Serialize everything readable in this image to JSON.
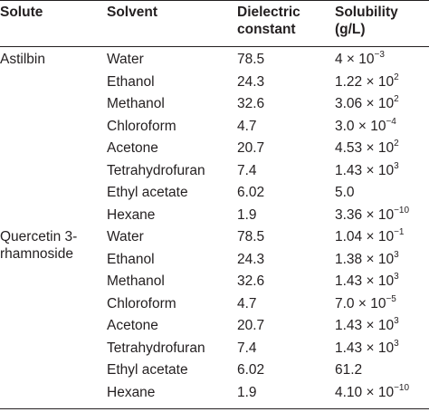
{
  "table": {
    "headers": {
      "solute": "Solute",
      "solvent": "Solvent",
      "dielectric": "Dielectric constant",
      "solubility": "Solubility (g/L)"
    },
    "groups": [
      {
        "solute": "Astilbin",
        "rows": [
          {
            "solvent": "Water",
            "dielectric": "78.5",
            "sol_base": "4 × 10",
            "sol_exp": "−3"
          },
          {
            "solvent": "Ethanol",
            "dielectric": "24.3",
            "sol_base": "1.22 × 10",
            "sol_exp": "2"
          },
          {
            "solvent": "Methanol",
            "dielectric": "32.6",
            "sol_base": "3.06 × 10",
            "sol_exp": "2"
          },
          {
            "solvent": "Chloroform",
            "dielectric": "4.7",
            "sol_base": "3.0 × 10",
            "sol_exp": "−4"
          },
          {
            "solvent": "Acetone",
            "dielectric": "20.7",
            "sol_base": "4.53 × 10",
            "sol_exp": "2"
          },
          {
            "solvent": "Tetrahydrofuran",
            "dielectric": "7.4",
            "sol_base": "1.43 × 10",
            "sol_exp": "3"
          },
          {
            "solvent": "Ethyl acetate",
            "dielectric": "6.02",
            "sol_base": "5.0",
            "sol_exp": ""
          },
          {
            "solvent": "Hexane",
            "dielectric": "1.9",
            "sol_base": "3.36 × 10",
            "sol_exp": "−10"
          }
        ]
      },
      {
        "solute": "Quercetin 3-rhamnoside",
        "rows": [
          {
            "solvent": "Water",
            "dielectric": "78.5",
            "sol_base": "1.04 × 10",
            "sol_exp": "−1"
          },
          {
            "solvent": "Ethanol",
            "dielectric": "24.3",
            "sol_base": "1.38 × 10",
            "sol_exp": "3"
          },
          {
            "solvent": "Methanol",
            "dielectric": "32.6",
            "sol_base": "1.43 × 10",
            "sol_exp": "3"
          },
          {
            "solvent": "Chloroform",
            "dielectric": "4.7",
            "sol_base": "7.0 × 10",
            "sol_exp": "−5"
          },
          {
            "solvent": "Acetone",
            "dielectric": "20.7",
            "sol_base": "1.43 × 10",
            "sol_exp": "3"
          },
          {
            "solvent": "Tetrahydrofuran",
            "dielectric": "7.4",
            "sol_base": "1.43 × 10",
            "sol_exp": "3"
          },
          {
            "solvent": "Ethyl acetate",
            "dielectric": "6.02",
            "sol_base": "61.2",
            "sol_exp": ""
          },
          {
            "solvent": "Hexane",
            "dielectric": "1.9",
            "sol_base": "4.10 × 10",
            "sol_exp": "−10"
          }
        ]
      }
    ]
  }
}
